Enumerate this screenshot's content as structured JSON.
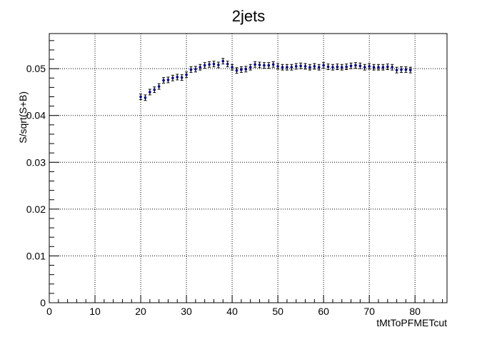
{
  "chart_data": {
    "type": "scatter",
    "title": "2jets",
    "xlabel": "tMtToPFMETcut",
    "ylabel": "S/sqrt(S+B)",
    "xlim": [
      0,
      87
    ],
    "ylim": [
      0,
      0.0575
    ],
    "x_ticks": [
      "0",
      "10",
      "20",
      "30",
      "40",
      "50",
      "60",
      "70",
      "80"
    ],
    "y_ticks": [
      "0",
      "0.01",
      "0.02",
      "0.03",
      "0.04",
      "0.05"
    ],
    "grid": true,
    "marker_color": "#000080",
    "error": 0.0006,
    "points": [
      [
        20,
        0.044
      ],
      [
        21,
        0.0438
      ],
      [
        22,
        0.045
      ],
      [
        23,
        0.0455
      ],
      [
        24,
        0.0462
      ],
      [
        25,
        0.0475
      ],
      [
        26,
        0.0476
      ],
      [
        27,
        0.048
      ],
      [
        28,
        0.0482
      ],
      [
        29,
        0.0481
      ],
      [
        30,
        0.0487
      ],
      [
        31,
        0.0498
      ],
      [
        32,
        0.0499
      ],
      [
        33,
        0.0503
      ],
      [
        34,
        0.0507
      ],
      [
        35,
        0.0509
      ],
      [
        36,
        0.051
      ],
      [
        37,
        0.0508
      ],
      [
        38,
        0.0516
      ],
      [
        39,
        0.051
      ],
      [
        40,
        0.0503
      ],
      [
        41,
        0.0496
      ],
      [
        42,
        0.0498
      ],
      [
        43,
        0.0499
      ],
      [
        44,
        0.0503
      ],
      [
        45,
        0.0509
      ],
      [
        46,
        0.0508
      ],
      [
        47,
        0.0507
      ],
      [
        48,
        0.0507
      ],
      [
        49,
        0.0509
      ],
      [
        50,
        0.0505
      ],
      [
        51,
        0.0503
      ],
      [
        52,
        0.0503
      ],
      [
        53,
        0.0503
      ],
      [
        54,
        0.0505
      ],
      [
        55,
        0.0506
      ],
      [
        56,
        0.0505
      ],
      [
        57,
        0.0503
      ],
      [
        58,
        0.0505
      ],
      [
        59,
        0.0503
      ],
      [
        60,
        0.0507
      ],
      [
        61,
        0.0504
      ],
      [
        62,
        0.0503
      ],
      [
        63,
        0.0504
      ],
      [
        64,
        0.0503
      ],
      [
        65,
        0.0504
      ],
      [
        66,
        0.0506
      ],
      [
        67,
        0.0507
      ],
      [
        68,
        0.0506
      ],
      [
        69,
        0.0503
      ],
      [
        70,
        0.0505
      ],
      [
        71,
        0.0503
      ],
      [
        72,
        0.0503
      ],
      [
        73,
        0.0503
      ],
      [
        74,
        0.0504
      ],
      [
        75,
        0.0503
      ],
      [
        76,
        0.0497
      ],
      [
        77,
        0.0498
      ],
      [
        78,
        0.0498
      ],
      [
        79,
        0.0497
      ]
    ]
  }
}
